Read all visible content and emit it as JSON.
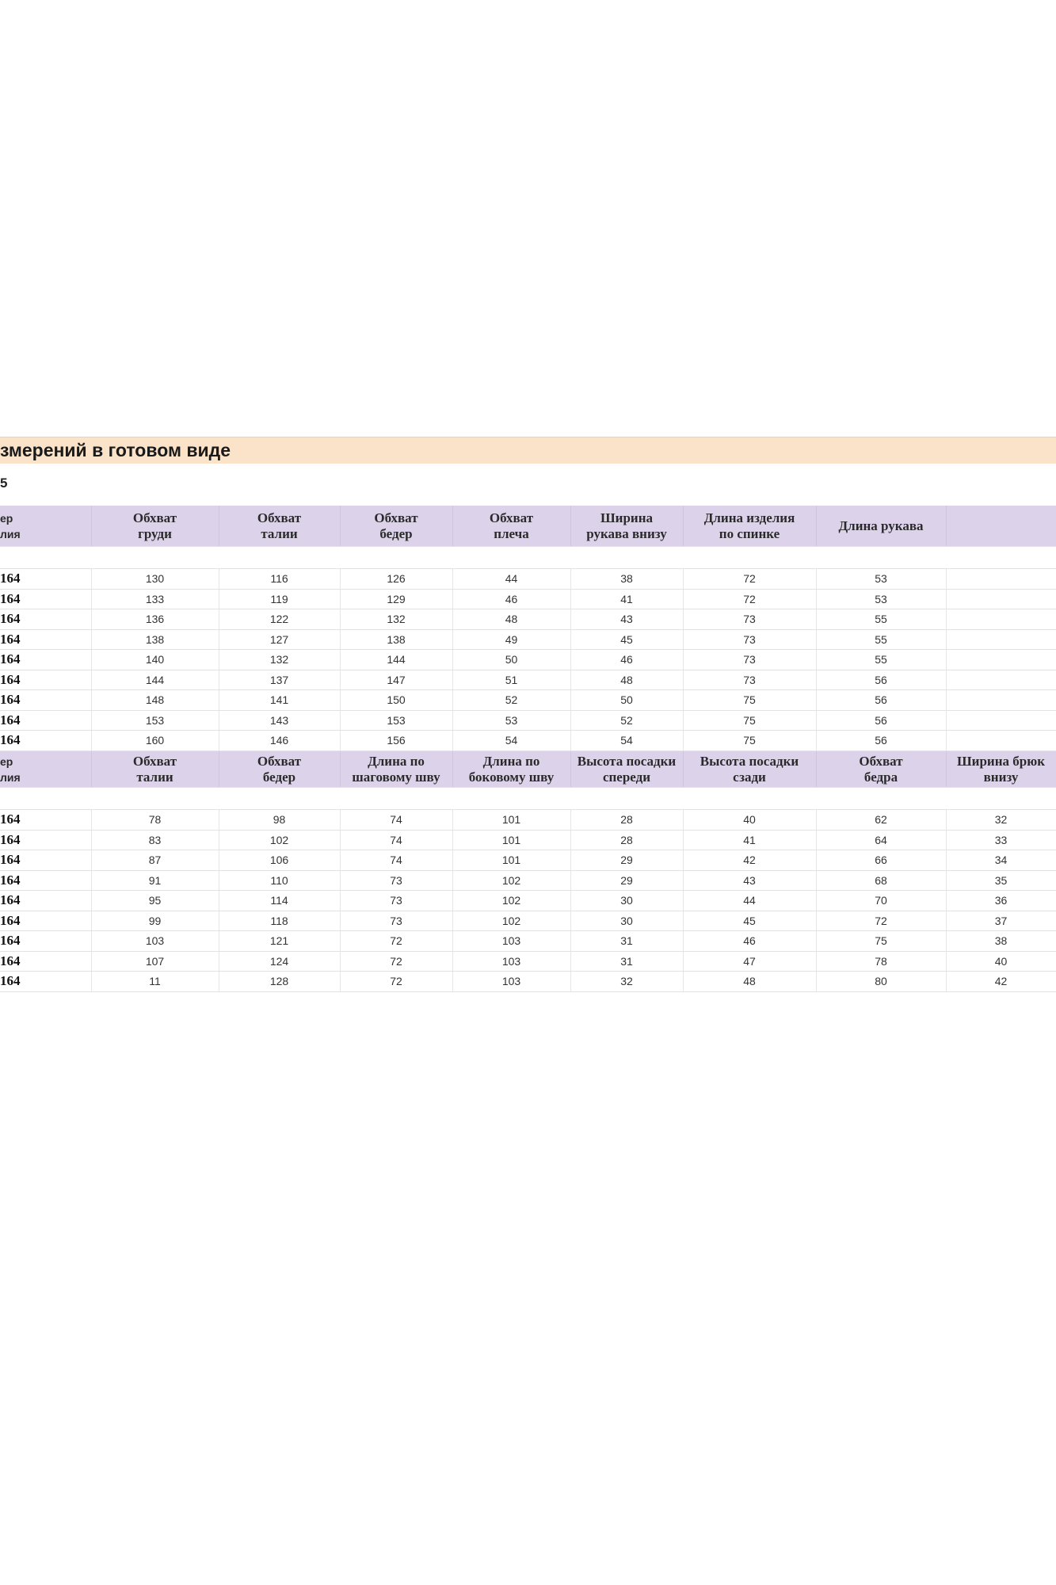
{
  "title": "змерений в готовом виде",
  "subtitle": "5",
  "colors": {
    "title_band": "#fbe3c9",
    "header_bg": "#dcd3ea"
  },
  "table1": {
    "headers": [
      [
        "ер",
        "лия"
      ],
      [
        "Обхват",
        "груди"
      ],
      [
        "Обхват",
        "талии"
      ],
      [
        "Обхват",
        "бедер"
      ],
      [
        "Обхват",
        "плеча"
      ],
      [
        "Ширина",
        "рукава внизу"
      ],
      [
        "Длина изделия",
        "по спинке"
      ],
      [
        "Длина рукава",
        ""
      ],
      [
        "",
        ""
      ]
    ],
    "rows": [
      [
        "164",
        "130",
        "116",
        "126",
        "44",
        "38",
        "72",
        "53",
        ""
      ],
      [
        "164",
        "133",
        "119",
        "129",
        "46",
        "41",
        "72",
        "53",
        ""
      ],
      [
        "164",
        "136",
        "122",
        "132",
        "48",
        "43",
        "73",
        "55",
        ""
      ],
      [
        "164",
        "138",
        "127",
        "138",
        "49",
        "45",
        "73",
        "55",
        ""
      ],
      [
        "164",
        "140",
        "132",
        "144",
        "50",
        "46",
        "73",
        "55",
        ""
      ],
      [
        "164",
        "144",
        "137",
        "147",
        "51",
        "48",
        "73",
        "56",
        ""
      ],
      [
        "164",
        "148",
        "141",
        "150",
        "52",
        "50",
        "75",
        "56",
        ""
      ],
      [
        "164",
        "153",
        "143",
        "153",
        "53",
        "52",
        "75",
        "56",
        ""
      ],
      [
        "164",
        "160",
        "146",
        "156",
        "54",
        "54",
        "75",
        "56",
        ""
      ]
    ]
  },
  "table2": {
    "headers": [
      [
        "ер",
        "лия"
      ],
      [
        "Обхват",
        "талии"
      ],
      [
        "Обхват",
        "бедер"
      ],
      [
        "Длина по",
        "шаговому шву"
      ],
      [
        "Длина по",
        "боковому шву"
      ],
      [
        "Высота посадки",
        "спереди"
      ],
      [
        "Высота посадки",
        "сзади"
      ],
      [
        "Обхват",
        "бедра"
      ],
      [
        "Ширина брюк",
        "внизу"
      ]
    ],
    "rows": [
      [
        "164",
        "78",
        "98",
        "74",
        "101",
        "28",
        "40",
        "62",
        "32"
      ],
      [
        "164",
        "83",
        "102",
        "74",
        "101",
        "28",
        "41",
        "64",
        "33"
      ],
      [
        "164",
        "87",
        "106",
        "74",
        "101",
        "29",
        "42",
        "66",
        "34"
      ],
      [
        "164",
        "91",
        "110",
        "73",
        "102",
        "29",
        "43",
        "68",
        "35"
      ],
      [
        "164",
        "95",
        "114",
        "73",
        "102",
        "30",
        "44",
        "70",
        "36"
      ],
      [
        "164",
        "99",
        "118",
        "73",
        "102",
        "30",
        "45",
        "72",
        "37"
      ],
      [
        "164",
        "103",
        "121",
        "72",
        "103",
        "31",
        "46",
        "75",
        "38"
      ],
      [
        "164",
        "107",
        "124",
        "72",
        "103",
        "31",
        "47",
        "78",
        "40"
      ],
      [
        "164",
        "11",
        "128",
        "72",
        "103",
        "32",
        "48",
        "80",
        "42"
      ]
    ]
  }
}
